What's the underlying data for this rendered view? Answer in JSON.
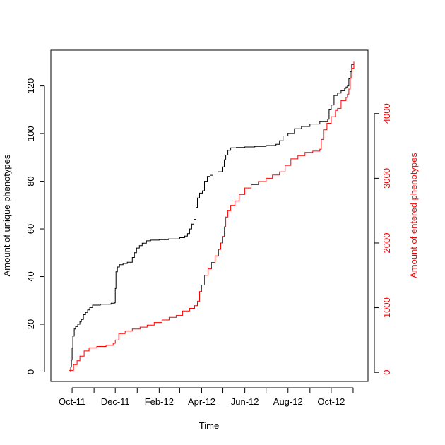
{
  "chart_data": {
    "type": "line",
    "title": "",
    "xlabel": "Time",
    "ylabel": "Amount of unique phenotypes",
    "ylabel_right": "Amount of entered phenotypes",
    "x_tick_labels": [
      "Oct-11",
      "Dec-11",
      "Feb-12",
      "Apr-12",
      "Jun-12",
      "Aug-12",
      "Oct-12"
    ],
    "x_tick_dates": [
      "2011-10-01",
      "2011-12-01",
      "2012-02-01",
      "2012-04-01",
      "2012-06-01",
      "2012-08-01",
      "2012-10-01"
    ],
    "x_minor_tick_dates": [
      "2011-11-01",
      "2012-01-01",
      "2012-03-01",
      "2012-05-01",
      "2012-07-01",
      "2012-09-01",
      "2012-11-01"
    ],
    "xlim": [
      "2011-09-01",
      "2012-11-22"
    ],
    "ylim_left": [
      -4,
      135
    ],
    "y_left_ticks": [
      0,
      20,
      40,
      60,
      80,
      100,
      120
    ],
    "ylim_right": [
      -140,
      4980
    ],
    "y_right_ticks": [
      0,
      1000,
      2000,
      3000,
      4000
    ],
    "grid": false,
    "legend": "none",
    "series": [
      {
        "axis": "left",
        "color": "#000000",
        "x": [
          "2011-09-27",
          "2011-09-29",
          "2011-09-30",
          "2011-10-01",
          "2011-10-02",
          "2011-10-04",
          "2011-10-06",
          "2011-10-09",
          "2011-10-12",
          "2011-10-14",
          "2011-10-17",
          "2011-10-20",
          "2011-10-23",
          "2011-10-26",
          "2011-10-30",
          "2011-11-10",
          "2011-11-25",
          "2011-11-30",
          "2011-12-01",
          "2011-12-02",
          "2011-12-04",
          "2011-12-07",
          "2011-12-12",
          "2011-12-18",
          "2011-12-25",
          "2011-12-28",
          "2011-12-31",
          "2012-01-04",
          "2012-01-08",
          "2012-01-14",
          "2012-01-20",
          "2012-02-01",
          "2012-02-14",
          "2012-03-01",
          "2012-03-08",
          "2012-03-12",
          "2012-03-15",
          "2012-03-18",
          "2012-03-21",
          "2012-03-24",
          "2012-03-26",
          "2012-03-29",
          "2012-04-02",
          "2012-04-05",
          "2012-04-09",
          "2012-04-13",
          "2012-04-17",
          "2012-04-24",
          "2012-05-01",
          "2012-05-03",
          "2012-05-05",
          "2012-05-08",
          "2012-05-12",
          "2012-05-20",
          "2012-06-01",
          "2012-06-15",
          "2012-07-01",
          "2012-07-15",
          "2012-07-20",
          "2012-07-25",
          "2012-08-01",
          "2012-08-10",
          "2012-08-20",
          "2012-09-01",
          "2012-09-15",
          "2012-09-26",
          "2012-09-28",
          "2012-10-01",
          "2012-10-05",
          "2012-10-10",
          "2012-10-15",
          "2012-10-20",
          "2012-10-22",
          "2012-10-24",
          "2012-10-26",
          "2012-10-28",
          "2012-10-30",
          "2012-11-02"
        ],
        "values": [
          0,
          2,
          5,
          10,
          15,
          18,
          19,
          20,
          21,
          22,
          24,
          25,
          26,
          27,
          28,
          28.4,
          28.8,
          29,
          35,
          42,
          44,
          45,
          45.5,
          46,
          48,
          50,
          52,
          53,
          54,
          55,
          55.3,
          55.5,
          55.8,
          56.3,
          57,
          58,
          60,
          62,
          64,
          69,
          73,
          75,
          76,
          80,
          82,
          82.5,
          83,
          84,
          86,
          89,
          91,
          93,
          94,
          94.2,
          94.4,
          94.6,
          95,
          95.5,
          97,
          99,
          100,
          102,
          103,
          104,
          105,
          106,
          110,
          112,
          116,
          117,
          118,
          119,
          119.5,
          120,
          123,
          126,
          129,
          130
        ]
      },
      {
        "axis": "right",
        "color": "#ff0000",
        "x": [
          "2011-09-27",
          "2011-10-03",
          "2011-10-08",
          "2011-10-12",
          "2011-10-18",
          "2011-10-25",
          "2011-11-05",
          "2011-11-18",
          "2011-11-28",
          "2011-12-01",
          "2011-12-06",
          "2011-12-15",
          "2011-12-25",
          "2012-01-05",
          "2012-01-15",
          "2012-01-25",
          "2012-02-05",
          "2012-02-15",
          "2012-02-25",
          "2012-03-05",
          "2012-03-15",
          "2012-03-22",
          "2012-03-26",
          "2012-03-29",
          "2012-04-01",
          "2012-04-05",
          "2012-04-10",
          "2012-04-15",
          "2012-04-20",
          "2012-04-25",
          "2012-04-28",
          "2012-05-01",
          "2012-05-03",
          "2012-05-05",
          "2012-05-08",
          "2012-05-12",
          "2012-05-18",
          "2012-05-24",
          "2012-06-01",
          "2012-06-10",
          "2012-06-20",
          "2012-07-01",
          "2012-07-10",
          "2012-07-20",
          "2012-07-28",
          "2012-08-05",
          "2012-08-15",
          "2012-08-25",
          "2012-09-05",
          "2012-09-15",
          "2012-09-17",
          "2012-09-20",
          "2012-09-25",
          "2012-10-01",
          "2012-10-07",
          "2012-10-10",
          "2012-10-15",
          "2012-10-22",
          "2012-10-24",
          "2012-10-26",
          "2012-10-28",
          "2012-10-30",
          "2012-11-02"
        ],
        "values": [
          30,
          120,
          180,
          250,
          330,
          380,
          400,
          420,
          450,
          500,
          600,
          640,
          670,
          700,
          730,
          770,
          810,
          850,
          880,
          950,
          990,
          1030,
          1100,
          1250,
          1350,
          1500,
          1600,
          1700,
          1800,
          1900,
          2000,
          2100,
          2250,
          2400,
          2500,
          2580,
          2650,
          2750,
          2850,
          2900,
          2950,
          3000,
          3050,
          3100,
          3200,
          3300,
          3350,
          3400,
          3420,
          3450,
          3600,
          3750,
          3850,
          3950,
          4050,
          4080,
          4200,
          4250,
          4300,
          4380,
          4550,
          4700,
          4800
        ]
      }
    ]
  }
}
